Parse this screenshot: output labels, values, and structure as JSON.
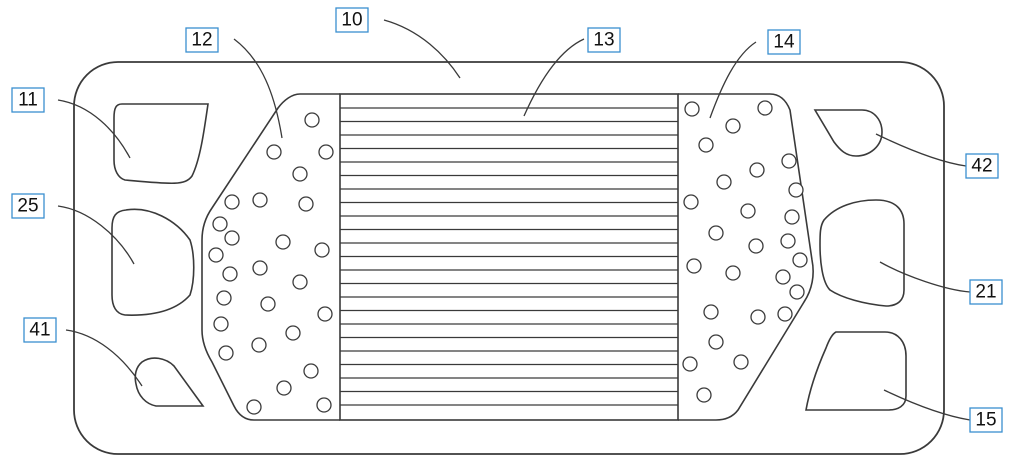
{
  "labels": {
    "l10": "10",
    "l11": "11",
    "l12": "12",
    "l13": "13",
    "l14": "14",
    "l15": "15",
    "l21": "21",
    "l25": "25",
    "l41": "41",
    "l42": "42"
  },
  "colors": {
    "line": "#3a3a3a",
    "label_border": "#3a8fd0",
    "background": "#ffffff"
  }
}
